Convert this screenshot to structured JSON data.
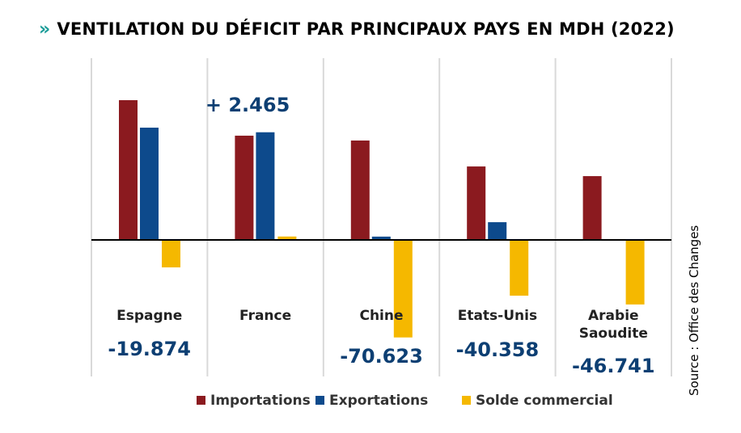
{
  "chart_data": {
    "type": "bar",
    "title": "VENTILATION DU DÉFICIT PAR PRINCIPAUX PAYS EN MDH (2022)",
    "categories": [
      "Espagne",
      "France",
      "Chine",
      "Etats-Unis",
      "Arabie Saoudite"
    ],
    "category_lines": [
      [
        "Espagne"
      ],
      [
        "France"
      ],
      [
        "Chine"
      ],
      [
        "Etats-Unis"
      ],
      [
        "Arabie",
        "Saoudite"
      ]
    ],
    "series": [
      {
        "name": "Importations",
        "color": "#8b1a1f",
        "values": [
          101200,
          75500,
          72000,
          53200,
          46200
        ]
      },
      {
        "name": "Exportations",
        "color": "#0d4a8c",
        "values": [
          81300,
          77965,
          2400,
          12842,
          300
        ]
      },
      {
        "name": "Solde commercial",
        "color": "#f5b800",
        "values": [
          -19874,
          2465,
          -70623,
          -40358,
          -46741
        ]
      }
    ],
    "solde_labels": [
      "-19.874",
      "+ 2.465",
      "-70.623",
      "-40.358",
      "-46.741"
    ],
    "legend_position": "bottom",
    "grid": false,
    "source": "Source : Office des Changes"
  }
}
